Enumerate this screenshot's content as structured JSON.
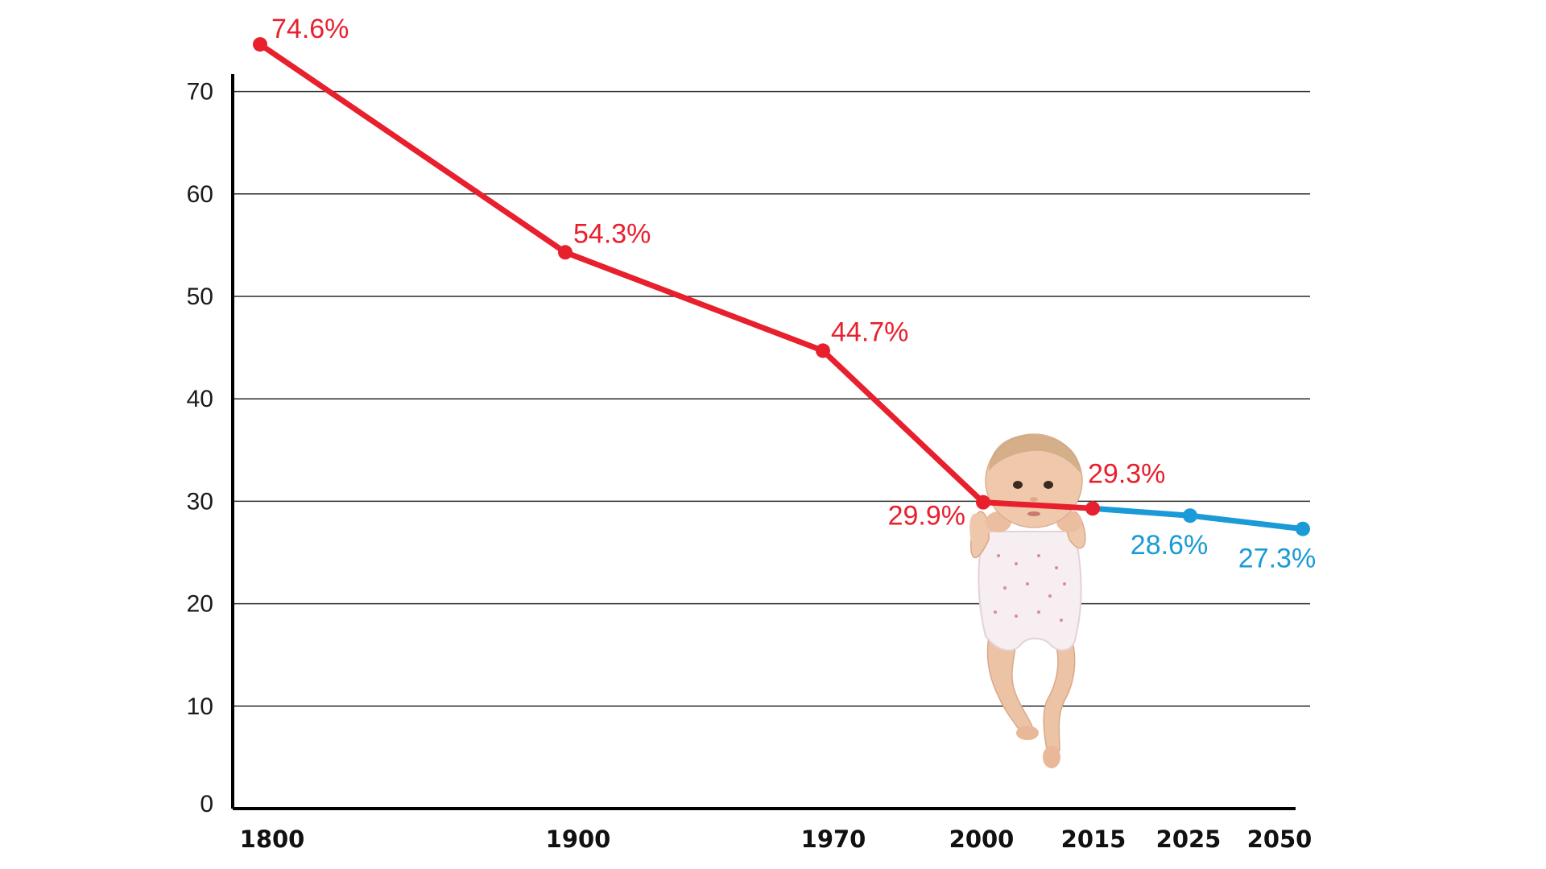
{
  "colors": {
    "historical": "#e8202e",
    "projected": "#1a9ad6",
    "grid": "#2a2a2a",
    "axis": "#000000"
  },
  "chart_data": {
    "type": "line",
    "title": "",
    "xlabel": "",
    "ylabel": "",
    "ylim": [
      0,
      72
    ],
    "yticks": [
      "0",
      "10",
      "20",
      "30",
      "40",
      "50",
      "60",
      "70"
    ],
    "grid": true,
    "categories": [
      "1800",
      "1900",
      "1970",
      "2000",
      "2015",
      "2025",
      "2050"
    ],
    "series": [
      {
        "status": "historical",
        "color": "#e8202e",
        "x": [
          "1800",
          "1900",
          "1970",
          "2000",
          "2015"
        ],
        "values": [
          74.6,
          54.3,
          44.7,
          29.9,
          29.3
        ],
        "labels": [
          "74.6%",
          "54.3%",
          "44.7%",
          "29.9%",
          "29.3%"
        ]
      },
      {
        "status": "projected",
        "color": "#1a9ad6",
        "x": [
          "2015",
          "2025",
          "2050"
        ],
        "values": [
          29.3,
          28.6,
          27.3
        ],
        "labels": [
          "",
          "28.6%",
          "27.3%"
        ]
      }
    ],
    "illustration": "baby-hanging-from-line"
  }
}
